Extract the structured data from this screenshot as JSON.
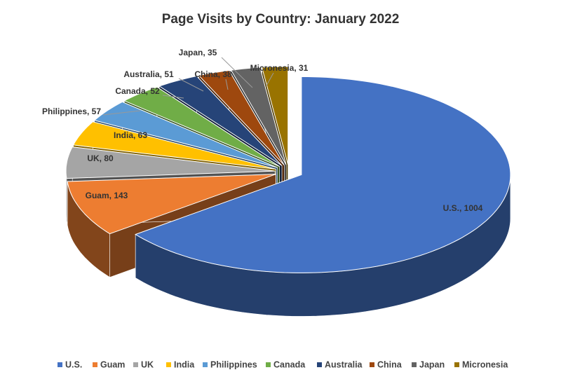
{
  "chart_data": {
    "type": "pie3d",
    "title": "Page Visits by Country: January 2022",
    "categories": [
      "U.S.",
      "Guam",
      "UK",
      "India",
      "Philippines",
      "Canada",
      "Australia",
      "China",
      "Japan",
      "Micronesia"
    ],
    "values": [
      1004,
      143,
      80,
      63,
      57,
      52,
      51,
      38,
      35,
      31
    ],
    "value_labels": [
      "U.S., 1004",
      "Guam, 143",
      "UK, 80",
      "India, 63",
      "Philippines, 57",
      "Canada, 52",
      "Australia, 51",
      "China, 38",
      "Japan, 35",
      "Micronesia, 31"
    ],
    "colors": [
      "#4472c4",
      "#ed7d31",
      "#a5a5a5",
      "#ffc000",
      "#5b9bd5",
      "#70ad47",
      "#264478",
      "#9e480e",
      "#636363",
      "#997300"
    ],
    "legend": "bottom"
  }
}
